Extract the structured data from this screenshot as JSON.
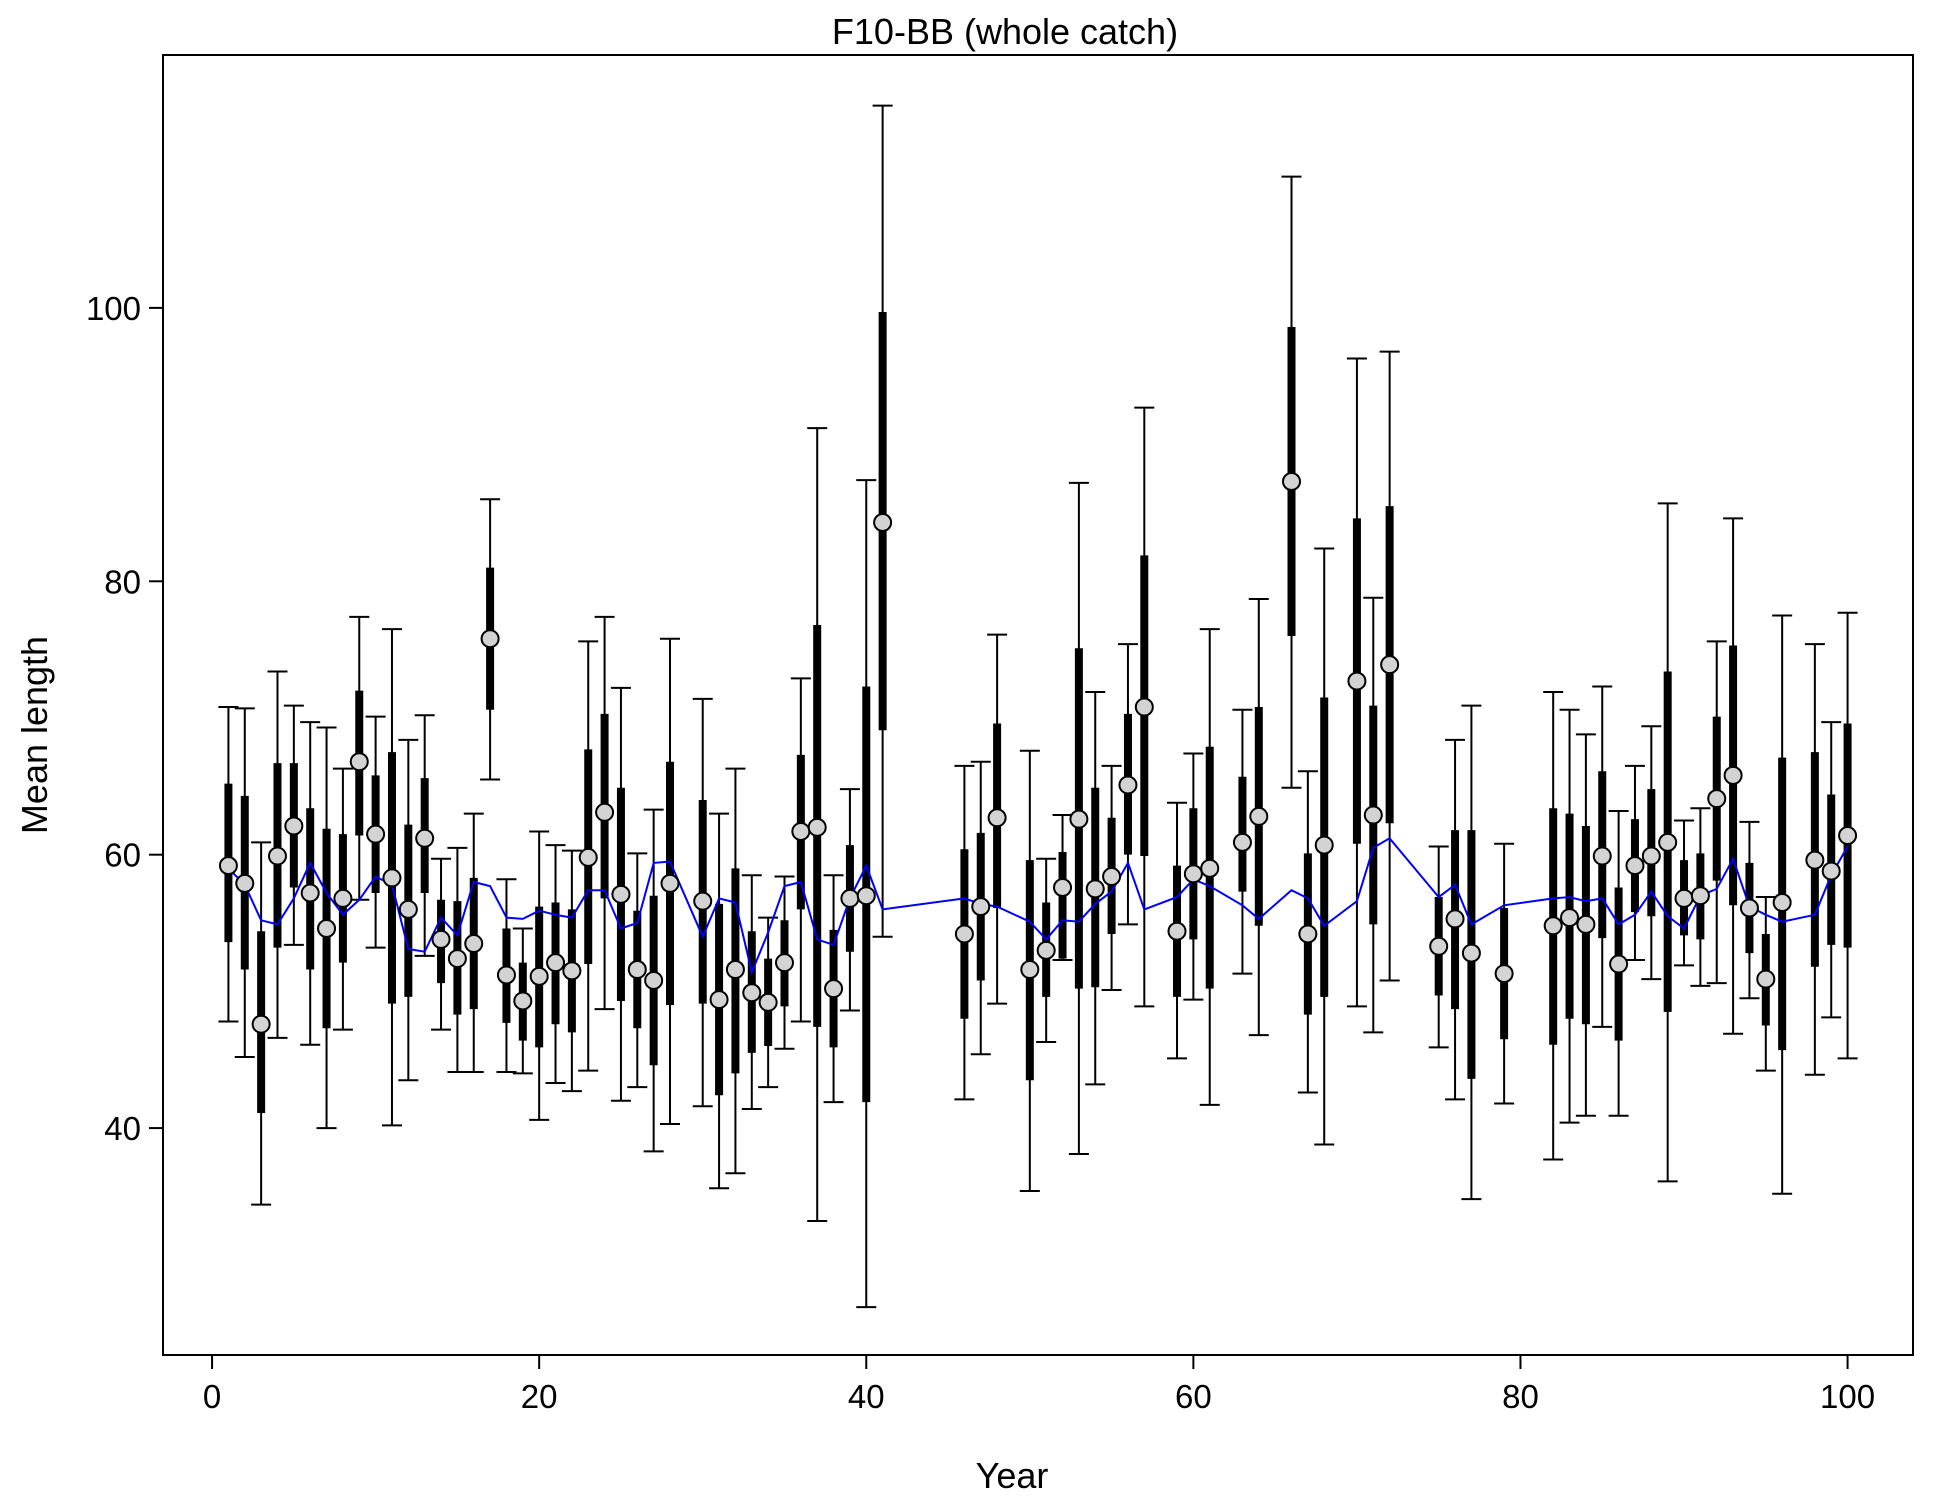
{
  "chart_data": {
    "type": "scatter",
    "title": "F10-BB (whole catch)",
    "xlabel": "Year",
    "ylabel": "Mean length",
    "xlim": [
      -3,
      104
    ],
    "ylim": [
      23.4,
      118.5
    ],
    "xticks": [
      0,
      20,
      40,
      60,
      80,
      100
    ],
    "yticks": [
      40,
      60,
      80,
      100
    ],
    "grid": false,
    "legend": "none",
    "colors": {
      "observed_fill": "#d3d3d3",
      "observed_stroke": "#000000",
      "interval": "#000000",
      "expected_line": "#0000ff"
    },
    "series": [
      {
        "kind": "observed",
        "x": [
          1,
          2,
          3,
          4,
          5,
          6,
          7,
          8,
          9,
          10,
          11,
          12,
          13,
          14,
          15,
          16,
          17,
          18,
          19,
          20,
          21,
          22,
          23,
          24,
          25,
          26,
          27,
          28,
          30,
          31,
          32,
          33,
          34,
          35,
          36,
          37,
          38,
          39,
          40,
          41,
          46,
          47,
          48,
          50,
          51,
          52,
          53,
          54,
          55,
          56,
          57,
          59,
          60,
          61,
          63,
          64,
          66,
          67,
          68,
          70,
          71,
          72,
          75,
          76,
          77,
          79,
          82,
          83,
          84,
          85,
          86,
          87,
          88,
          89,
          90,
          91,
          92,
          93,
          94,
          95,
          96,
          98,
          99,
          100
        ],
        "y": [
          59.2,
          57.9,
          47.6,
          59.9,
          62.1,
          57.2,
          54.6,
          56.8,
          66.8,
          61.5,
          58.3,
          56.0,
          61.2,
          53.8,
          52.4,
          53.5,
          75.8,
          51.2,
          49.3,
          51.1,
          52.1,
          51.5,
          59.8,
          63.1,
          57.1,
          51.6,
          50.8,
          57.9,
          56.6,
          49.4,
          51.6,
          49.9,
          49.2,
          52.1,
          61.7,
          62.0,
          50.2,
          56.8,
          57.0,
          84.3,
          54.2,
          56.2,
          62.7,
          51.6,
          53.0,
          57.6,
          62.6,
          57.5,
          58.4,
          65.1,
          70.8,
          54.4,
          58.6,
          59.0,
          60.9,
          62.8,
          87.3,
          54.2,
          60.7,
          72.7,
          62.9,
          73.9,
          53.3,
          55.3,
          52.8,
          51.3,
          54.8,
          55.4,
          54.9,
          59.9,
          52.0,
          59.2,
          59.9,
          60.9,
          56.8,
          57.0,
          64.1,
          65.8,
          56.1,
          50.9,
          56.5,
          59.6,
          58.8,
          61.4
        ],
        "inner_low": [
          53.6,
          51.6,
          41.1,
          53.2,
          57.6,
          51.6,
          47.3,
          52.1,
          61.4,
          57.2,
          49.1,
          49.6,
          57.2,
          50.6,
          48.3,
          48.7,
          70.6,
          47.7,
          46.4,
          45.9,
          47.6,
          47.0,
          52.0,
          56.8,
          49.3,
          47.3,
          44.6,
          49.0,
          49.1,
          42.4,
          44.0,
          45.5,
          46.0,
          48.9,
          56.0,
          47.4,
          45.9,
          52.9,
          41.9,
          69.1,
          48.0,
          50.8,
          56.1,
          43.5,
          49.6,
          52.4,
          50.2,
          50.3,
          54.2,
          60.0,
          59.9,
          49.6,
          53.8,
          50.2,
          57.3,
          54.8,
          76.0,
          48.3,
          49.6,
          60.8,
          54.9,
          62.3,
          49.7,
          48.7,
          43.6,
          46.5,
          46.1,
          48.0,
          47.6,
          53.9,
          46.4,
          55.8,
          55.5,
          48.5,
          54.1,
          53.8,
          58.1,
          56.3,
          52.8,
          47.5,
          45.7,
          51.8,
          53.4,
          53.2
        ],
        "inner_high": [
          65.2,
          64.3,
          54.4,
          66.7,
          66.7,
          63.4,
          61.9,
          61.5,
          72.0,
          65.8,
          67.5,
          62.2,
          65.6,
          56.7,
          56.6,
          58.3,
          81.0,
          54.6,
          52.1,
          56.2,
          56.5,
          56.0,
          67.7,
          70.3,
          64.9,
          55.9,
          57.0,
          66.8,
          64.0,
          56.4,
          59.0,
          54.4,
          52.4,
          55.2,
          67.3,
          76.8,
          54.5,
          60.7,
          72.3,
          99.7,
          60.4,
          61.6,
          69.6,
          59.6,
          56.5,
          60.2,
          75.1,
          64.9,
          62.7,
          70.3,
          81.9,
          59.2,
          63.4,
          67.9,
          65.7,
          70.8,
          98.6,
          60.1,
          71.5,
          84.6,
          70.9,
          85.5,
          56.9,
          61.8,
          61.8,
          56.1,
          63.4,
          63.0,
          62.1,
          66.1,
          57.6,
          62.6,
          64.8,
          73.4,
          59.6,
          60.1,
          70.1,
          75.3,
          59.4,
          54.2,
          67.1,
          67.5,
          64.4,
          69.6
        ],
        "outer_low": [
          47.8,
          45.2,
          34.4,
          46.6,
          53.4,
          46.1,
          40.0,
          47.2,
          56.7,
          53.2,
          40.2,
          43.5,
          52.6,
          47.2,
          44.1,
          44.1,
          65.5,
          44.1,
          44.0,
          40.6,
          43.3,
          42.7,
          44.2,
          48.7,
          42.0,
          43.0,
          38.3,
          40.3,
          41.6,
          35.6,
          36.7,
          41.4,
          43.0,
          45.8,
          47.8,
          33.2,
          41.9,
          48.6,
          26.9,
          54.0,
          42.1,
          45.4,
          49.1,
          35.4,
          46.3,
          52.3,
          38.1,
          43.2,
          50.1,
          54.9,
          48.9,
          45.1,
          49.4,
          41.7,
          51.3,
          46.8,
          64.9,
          42.6,
          38.8,
          48.9,
          47.0,
          50.8,
          45.9,
          42.1,
          34.8,
          41.8,
          37.7,
          40.4,
          40.9,
          47.4,
          40.9,
          52.3,
          50.9,
          36.1,
          51.9,
          50.4,
          50.6,
          46.9,
          49.5,
          44.2,
          35.2,
          43.9,
          48.1,
          45.1
        ],
        "outer_high": [
          70.8,
          70.7,
          60.9,
          73.4,
          70.9,
          69.7,
          69.3,
          66.3,
          77.4,
          70.1,
          76.5,
          68.4,
          70.2,
          59.7,
          60.5,
          63.0,
          86.0,
          58.2,
          54.6,
          61.7,
          60.7,
          60.3,
          75.6,
          77.4,
          72.2,
          60.1,
          63.3,
          75.8,
          71.4,
          63.0,
          66.3,
          58.5,
          55.4,
          58.4,
          72.9,
          91.2,
          58.5,
          64.8,
          87.4,
          114.8,
          66.5,
          66.8,
          76.1,
          67.6,
          59.7,
          62.9,
          87.2,
          71.9,
          66.5,
          75.4,
          92.7,
          63.8,
          67.4,
          76.5,
          70.6,
          78.7,
          109.6,
          66.1,
          82.4,
          96.3,
          78.8,
          96.8,
          60.6,
          68.4,
          70.9,
          60.8,
          71.9,
          70.6,
          68.8,
          72.3,
          63.2,
          66.5,
          69.4,
          85.7,
          62.5,
          63.4,
          75.6,
          84.6,
          62.4,
          56.9,
          77.5,
          75.4,
          69.7,
          77.7
        ]
      },
      {
        "kind": "expected",
        "x": [
          1,
          2,
          3,
          4,
          5,
          6,
          7,
          8,
          9,
          10,
          11,
          12,
          13,
          14,
          15,
          16,
          17,
          18,
          19,
          20,
          21,
          22,
          23,
          24,
          25,
          26,
          27,
          28,
          30,
          31,
          32,
          33,
          34,
          35,
          36,
          37,
          38,
          39,
          40,
          41,
          46,
          47,
          48,
          50,
          51,
          52,
          53,
          54,
          55,
          56,
          57,
          59,
          60,
          61,
          63,
          64,
          66,
          67,
          68,
          70,
          71,
          72,
          75,
          76,
          77,
          79,
          82,
          83,
          84,
          85,
          86,
          87,
          88,
          89,
          90,
          91,
          92,
          93,
          94,
          95,
          96,
          98,
          99,
          100
        ],
        "y": [
          59.0,
          57.8,
          55.2,
          54.9,
          56.8,
          59.4,
          57.2,
          55.6,
          56.7,
          58.4,
          57.8,
          53.1,
          52.9,
          55.4,
          54.1,
          58.0,
          57.7,
          55.4,
          55.3,
          55.9,
          55.6,
          55.4,
          57.4,
          57.4,
          54.6,
          55.0,
          59.4,
          59.5,
          54.0,
          56.8,
          56.5,
          51.4,
          54.3,
          57.7,
          58.0,
          53.8,
          53.4,
          56.8,
          59.2,
          56.0,
          56.8,
          56.4,
          56.2,
          55.1,
          53.8,
          55.2,
          55.1,
          56.4,
          57.3,
          59.4,
          56.0,
          56.9,
          58.2,
          57.7,
          56.3,
          55.3,
          57.4,
          56.8,
          54.8,
          56.6,
          60.5,
          61.2,
          56.9,
          57.8,
          54.9,
          56.3,
          56.8,
          56.9,
          56.6,
          56.8,
          54.9,
          55.6,
          57.3,
          55.5,
          54.6,
          57.0,
          57.5,
          59.7,
          56.2,
          55.6,
          55.1,
          55.6,
          58.5,
          60.6
        ]
      }
    ]
  }
}
